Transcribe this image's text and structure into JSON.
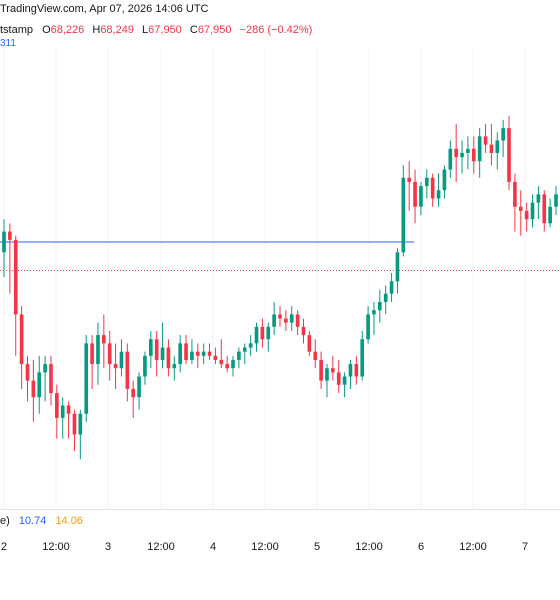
{
  "header": {
    "source_line": "TradingView.com, Apr 07, 2026 14:06 UTC",
    "symbol_fragment": "tstamp",
    "ohlc": [
      {
        "k": "O",
        "v": "68,226"
      },
      {
        "k": "H",
        "v": "68,249"
      },
      {
        "k": "L",
        "v": "67,950"
      },
      {
        "k": "C",
        "v": "67,950"
      }
    ],
    "change": "−286 (−0.42%)",
    "sub_value": "311"
  },
  "indicator": {
    "label_fragment": "e)",
    "value_a": "10.74",
    "value_b": "14.06"
  },
  "colors": {
    "up": "#089981",
    "down": "#f23645",
    "hline": "#2962ff",
    "dotted": "#f23645",
    "grid": "#f0f3fa"
  },
  "xaxis": {
    "ticks": [
      "2",
      "12:00",
      "3",
      "12:00",
      "4",
      "12:00",
      "5",
      "12:00",
      "6",
      "12:00",
      "7"
    ]
  },
  "chart_data": {
    "type": "candlestick",
    "y_range": [
      0,
      100
    ],
    "horizontal_line_level": 57.5,
    "dotted_line_level": 50.6,
    "candles": [
      [
        55,
        63,
        49,
        60
      ],
      [
        60,
        62,
        45,
        58
      ],
      [
        58,
        59,
        30,
        40
      ],
      [
        40,
        42,
        22,
        28
      ],
      [
        28,
        30,
        19,
        24
      ],
      [
        24,
        29,
        14,
        20
      ],
      [
        20,
        30,
        16,
        26
      ],
      [
        26,
        30,
        19,
        28
      ],
      [
        28,
        30,
        18,
        21
      ],
      [
        21,
        23,
        10,
        15
      ],
      [
        15,
        20,
        10,
        18
      ],
      [
        18,
        19,
        10,
        16
      ],
      [
        16,
        17,
        7,
        11
      ],
      [
        11,
        17,
        5,
        16
      ],
      [
        16,
        35,
        14,
        33
      ],
      [
        33,
        35,
        22,
        28
      ],
      [
        28,
        38,
        23,
        35
      ],
      [
        35,
        40,
        27,
        33
      ],
      [
        33,
        36,
        24,
        28
      ],
      [
        28,
        33,
        22,
        27
      ],
      [
        27,
        34,
        25,
        31
      ],
      [
        31,
        33,
        19,
        22
      ],
      [
        22,
        24,
        15,
        20
      ],
      [
        20,
        26,
        17,
        25
      ],
      [
        25,
        31,
        23,
        30
      ],
      [
        30,
        36,
        27,
        34
      ],
      [
        34,
        36,
        25,
        29
      ],
      [
        29,
        38,
        27,
        32
      ],
      [
        32,
        34,
        25,
        27
      ],
      [
        27,
        30,
        24,
        28
      ],
      [
        28,
        35,
        26,
        33
      ],
      [
        33,
        35,
        28,
        29
      ],
      [
        29,
        34,
        28,
        31
      ],
      [
        31,
        33,
        27,
        30
      ],
      [
        30,
        33,
        28,
        31
      ],
      [
        31,
        33,
        29,
        30
      ],
      [
        30,
        32,
        28,
        29
      ],
      [
        29,
        34,
        27,
        28
      ],
      [
        28,
        30,
        26,
        27
      ],
      [
        27,
        30,
        25,
        29
      ],
      [
        29,
        32,
        27,
        31
      ],
      [
        31,
        33,
        28,
        32
      ],
      [
        32,
        35,
        30,
        33
      ],
      [
        33,
        38,
        31,
        37
      ],
      [
        37,
        39,
        32,
        34
      ],
      [
        34,
        38,
        31,
        37
      ],
      [
        37,
        43,
        35,
        40
      ],
      [
        40,
        42,
        37,
        39
      ],
      [
        39,
        41,
        36,
        38
      ],
      [
        38,
        42,
        36,
        40
      ],
      [
        40,
        41,
        35,
        37
      ],
      [
        37,
        39,
        33,
        35
      ],
      [
        35,
        36,
        30,
        31
      ],
      [
        31,
        34,
        27,
        29
      ],
      [
        29,
        31,
        22,
        24
      ],
      [
        24,
        28,
        20,
        27
      ],
      [
        27,
        30,
        24,
        26
      ],
      [
        26,
        29,
        21,
        23
      ],
      [
        23,
        26,
        20,
        25
      ],
      [
        25,
        29,
        22,
        28
      ],
      [
        28,
        30,
        23,
        25
      ],
      [
        25,
        36,
        24,
        34
      ],
      [
        34,
        42,
        33,
        40
      ],
      [
        40,
        43,
        35,
        41
      ],
      [
        41,
        46,
        38,
        43
      ],
      [
        43,
        47,
        40,
        45
      ],
      [
        45,
        50,
        43,
        48
      ],
      [
        48,
        56,
        45,
        55
      ],
      [
        55,
        76,
        54,
        73
      ],
      [
        73,
        77,
        65,
        72
      ],
      [
        72,
        75,
        62,
        66
      ],
      [
        66,
        72,
        64,
        71
      ],
      [
        71,
        75,
        68,
        73
      ],
      [
        73,
        74,
        66,
        68
      ],
      [
        68,
        74,
        66,
        70
      ],
      [
        70,
        76,
        68,
        75
      ],
      [
        75,
        82,
        73,
        80
      ],
      [
        80,
        86,
        72,
        78
      ],
      [
        78,
        82,
        74,
        79
      ],
      [
        79,
        83,
        75,
        80
      ],
      [
        80,
        83,
        74,
        77
      ],
      [
        77,
        85,
        73,
        83
      ],
      [
        83,
        86,
        79,
        81
      ],
      [
        81,
        86,
        76,
        79
      ],
      [
        79,
        84,
        75,
        82
      ],
      [
        82,
        87,
        78,
        85
      ],
      [
        85,
        88,
        70,
        72
      ],
      [
        72,
        74,
        60,
        66
      ],
      [
        66,
        70,
        59,
        65
      ],
      [
        65,
        67,
        60,
        63
      ],
      [
        63,
        69,
        61,
        67
      ],
      [
        67,
        71,
        63,
        69
      ],
      [
        69,
        70,
        60,
        62
      ],
      [
        62,
        68,
        61,
        66
      ],
      [
        66,
        71,
        64,
        69
      ]
    ]
  }
}
